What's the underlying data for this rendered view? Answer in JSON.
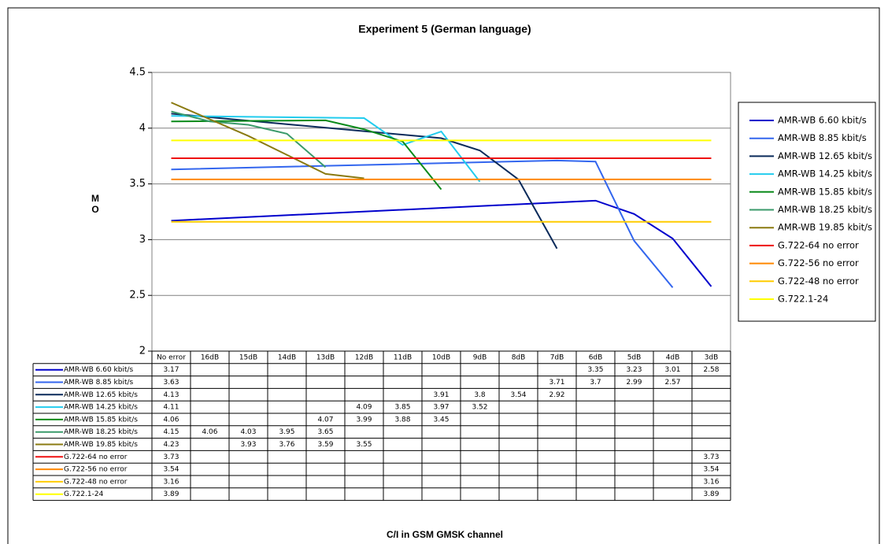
{
  "chart_data": {
    "type": "line",
    "title": "Experiment 5 (German language)",
    "xlabel": "C/I in GSM GMSK channel",
    "ylabel": "M O",
    "categories": [
      "No error",
      "16dB",
      "15dB",
      "14dB",
      "13dB",
      "12dB",
      "11dB",
      "10dB",
      "9dB",
      "8dB",
      "7dB",
      "6dB",
      "5dB",
      "4dB",
      "3dB"
    ],
    "ylim": [
      2,
      4.5
    ],
    "yticks": [
      2,
      2.5,
      3,
      3.5,
      4,
      4.5
    ],
    "grid": true,
    "connect_gaps": true,
    "legend": "right",
    "data_table": true,
    "series": [
      {
        "name": "AMR-WB 6.60 kbit/s",
        "color": "#0000cc",
        "values": [
          3.17,
          null,
          null,
          null,
          null,
          null,
          null,
          null,
          null,
          null,
          null,
          3.35,
          3.23,
          3.01,
          2.58
        ]
      },
      {
        "name": "AMR-WB 8.85 kbit/s",
        "color": "#3366ee",
        "values": [
          3.63,
          null,
          null,
          null,
          null,
          null,
          null,
          null,
          null,
          null,
          3.71,
          3.7,
          2.99,
          2.57,
          null
        ]
      },
      {
        "name": "AMR-WB 12.65 kbit/s",
        "color": "#0a2a5a",
        "values": [
          4.13,
          null,
          null,
          null,
          null,
          null,
          null,
          3.91,
          3.8,
          3.54,
          2.92,
          null,
          null,
          null,
          null
        ]
      },
      {
        "name": "AMR-WB 14.25 kbit/s",
        "color": "#22ccee",
        "values": [
          4.11,
          null,
          null,
          null,
          null,
          4.09,
          3.85,
          3.97,
          3.52,
          null,
          null,
          null,
          null,
          null,
          null
        ]
      },
      {
        "name": "AMR-WB 15.85 kbit/s",
        "color": "#0a8a1a",
        "values": [
          4.06,
          null,
          null,
          null,
          4.07,
          3.99,
          3.88,
          3.45,
          null,
          null,
          null,
          null,
          null,
          null,
          null
        ]
      },
      {
        "name": "AMR-WB 18.25 kbit/s",
        "color": "#3a9a6a",
        "values": [
          4.15,
          4.06,
          4.03,
          3.95,
          3.65,
          null,
          null,
          null,
          null,
          null,
          null,
          null,
          null,
          null,
          null
        ]
      },
      {
        "name": "AMR-WB 19.85 kbit/s",
        "color": "#8a7a10",
        "values": [
          4.23,
          null,
          3.93,
          3.76,
          3.59,
          3.55,
          null,
          null,
          null,
          null,
          null,
          null,
          null,
          null,
          null
        ]
      },
      {
        "name": "G.722-64 no error",
        "color": "#ee1111",
        "values": [
          3.73,
          null,
          null,
          null,
          null,
          null,
          null,
          null,
          null,
          null,
          null,
          null,
          null,
          null,
          3.73
        ]
      },
      {
        "name": "G.722-56 no error",
        "color": "#ff8800",
        "values": [
          3.54,
          null,
          null,
          null,
          null,
          null,
          null,
          null,
          null,
          null,
          null,
          null,
          null,
          null,
          3.54
        ]
      },
      {
        "name": "G.722-48 no error",
        "color": "#ffcc00",
        "values": [
          3.16,
          null,
          null,
          null,
          null,
          null,
          null,
          null,
          null,
          null,
          null,
          null,
          null,
          null,
          3.16
        ]
      },
      {
        "name": "G.722.1-24",
        "color": "#ffff00",
        "values": [
          3.89,
          null,
          null,
          null,
          null,
          null,
          null,
          null,
          null,
          null,
          null,
          null,
          null,
          null,
          3.89
        ]
      }
    ]
  }
}
